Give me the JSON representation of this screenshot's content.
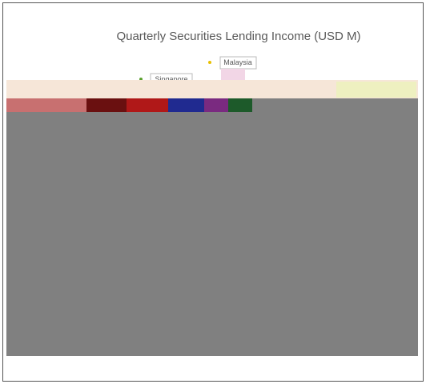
{
  "header": {
    "title": "Quarterly Securities Lending Income (USD M)"
  },
  "labels": [
    "Malaysia",
    "Singapore"
  ]
}
